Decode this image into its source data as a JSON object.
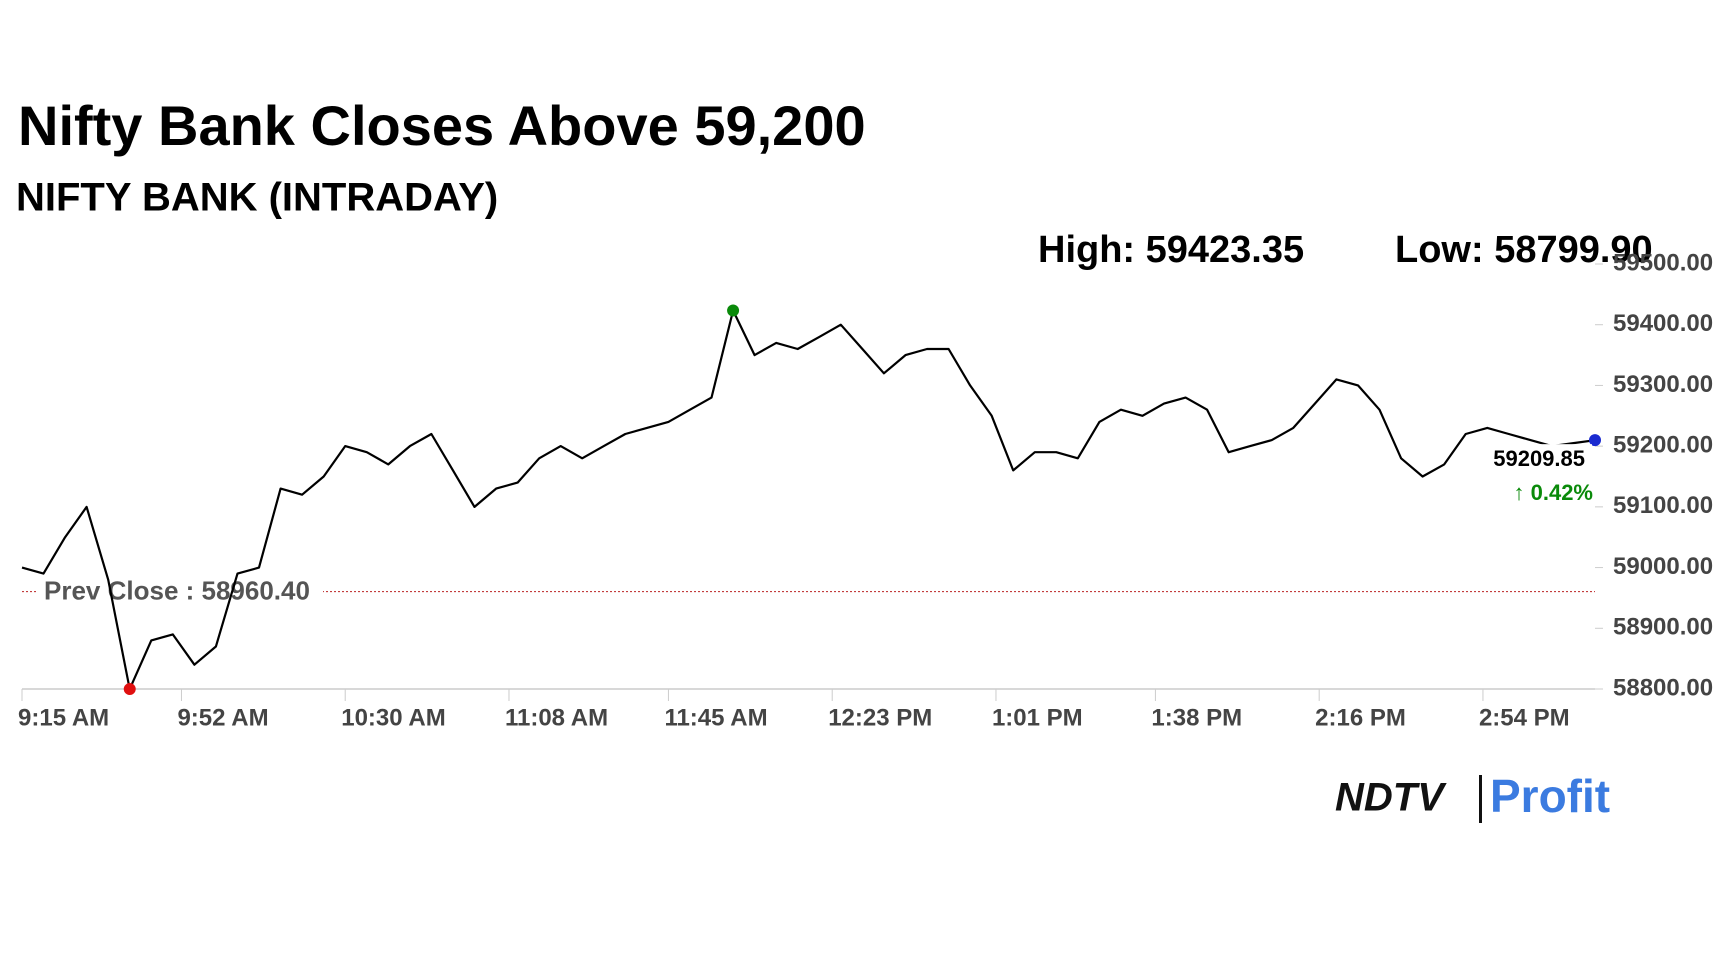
{
  "chart_data": {
    "type": "line",
    "title": "Nifty Bank Closes Above 59,200",
    "subtitle": "NIFTY BANK (INTRADAY)",
    "annotations": {
      "high": "High: 59423.35",
      "low": "Low: 58799.90",
      "last": "59209.85",
      "change": "↑ 0.42%",
      "prev_close": "Prev Close : 58960.40"
    },
    "prev_close": 58960.4,
    "brand": {
      "left": "NDTV",
      "right": "Profit"
    },
    "x": [
      555,
      560,
      565,
      570,
      575,
      580,
      585,
      590,
      595,
      600,
      605,
      610,
      615,
      620,
      625,
      630,
      635,
      640,
      645,
      650,
      655,
      660,
      665,
      670,
      675,
      680,
      685,
      690,
      695,
      700,
      705,
      710,
      715,
      720,
      725,
      730,
      735,
      740,
      745,
      750,
      755,
      760,
      765,
      770,
      775,
      780,
      785,
      790,
      795,
      800,
      805,
      810,
      815,
      820,
      825,
      830,
      835,
      840,
      845,
      850,
      855,
      860,
      865,
      870,
      875,
      880,
      885,
      890,
      895,
      900,
      905,
      910,
      915,
      920
    ],
    "series": [
      {
        "name": "NIFTY BANK",
        "color": "#000000",
        "values": [
          59000,
          58990,
          59050,
          59100,
          58980,
          58799.9,
          58880,
          58890,
          58840,
          58870,
          58990,
          59000,
          59130,
          59120,
          59150,
          59200,
          59190,
          59170,
          59200,
          59220,
          59160,
          59100,
          59130,
          59140,
          59180,
          59200,
          59180,
          59200,
          59220,
          59230,
          59240,
          59260,
          59280,
          59423.35,
          59350,
          59370,
          59360,
          59380,
          59400,
          59360,
          59320,
          59350,
          59360,
          59360,
          59300,
          59250,
          59160,
          59190,
          59190,
          59180,
          59240,
          59260,
          59250,
          59270,
          59280,
          59260,
          59190,
          59200,
          59210,
          59230,
          59270,
          59310,
          59300,
          59260,
          59180,
          59150,
          59170,
          59220,
          59230,
          59220,
          59210,
          59200,
          59205,
          59209.85
        ]
      }
    ],
    "xlim": [
      555,
      920
    ],
    "xticks": [
      {
        "value": 555,
        "label": "9:15 AM"
      },
      {
        "value": 592,
        "label": "9:52 AM"
      },
      {
        "value": 630,
        "label": "10:30 AM"
      },
      {
        "value": 668,
        "label": "11:08 AM"
      },
      {
        "value": 705,
        "label": "11:45 AM"
      },
      {
        "value": 743,
        "label": "12:23 PM"
      },
      {
        "value": 781,
        "label": "1:01 PM"
      },
      {
        "value": 818,
        "label": "1:38 PM"
      },
      {
        "value": 856,
        "label": "2:16 PM"
      },
      {
        "value": 894,
        "label": "2:54 PM"
      }
    ],
    "ylim": [
      58800,
      59500
    ],
    "yticks": [
      {
        "value": 58800,
        "label": "58800.00"
      },
      {
        "value": 58900,
        "label": "58900.00"
      },
      {
        "value": 59000,
        "label": "59000.00"
      },
      {
        "value": 59100,
        "label": "59100.00"
      },
      {
        "value": 59200,
        "label": "59200.00"
      },
      {
        "value": 59300,
        "label": "59300.00"
      },
      {
        "value": 59400,
        "label": "59400.00"
      },
      {
        "value": 59500,
        "label": "59500.00"
      }
    ],
    "grid": false
  }
}
